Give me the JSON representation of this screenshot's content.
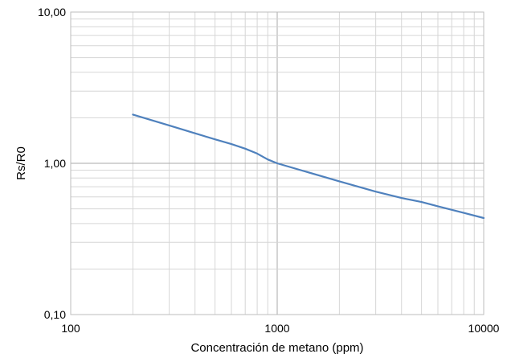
{
  "chart_data": {
    "type": "line",
    "x_scale": "log",
    "y_scale": "log",
    "xlabel": "Concentración de metano (ppm)",
    "ylabel": "Rs/R0",
    "xlim": [
      100,
      10000
    ],
    "ylim": [
      0.1,
      10
    ],
    "x_ticks": [
      {
        "value": 100,
        "label": "100"
      },
      {
        "value": 1000,
        "label": "1000"
      },
      {
        "value": 10000,
        "label": "10000"
      }
    ],
    "y_ticks": [
      {
        "value": 0.1,
        "label": "0,10"
      },
      {
        "value": 1,
        "label": "1,00"
      },
      {
        "value": 10,
        "label": "10,00"
      }
    ],
    "grid": true,
    "series": [
      {
        "color": "#4f81bd",
        "x": [
          200,
          300,
          400,
          500,
          600,
          700,
          800,
          900,
          1000,
          2000,
          3000,
          4000,
          5000,
          6000,
          8000,
          10000
        ],
        "y": [
          2.1,
          1.78,
          1.58,
          1.44,
          1.34,
          1.25,
          1.16,
          1.06,
          1.0,
          0.76,
          0.65,
          0.59,
          0.555,
          0.52,
          0.47,
          0.435
        ]
      }
    ]
  }
}
